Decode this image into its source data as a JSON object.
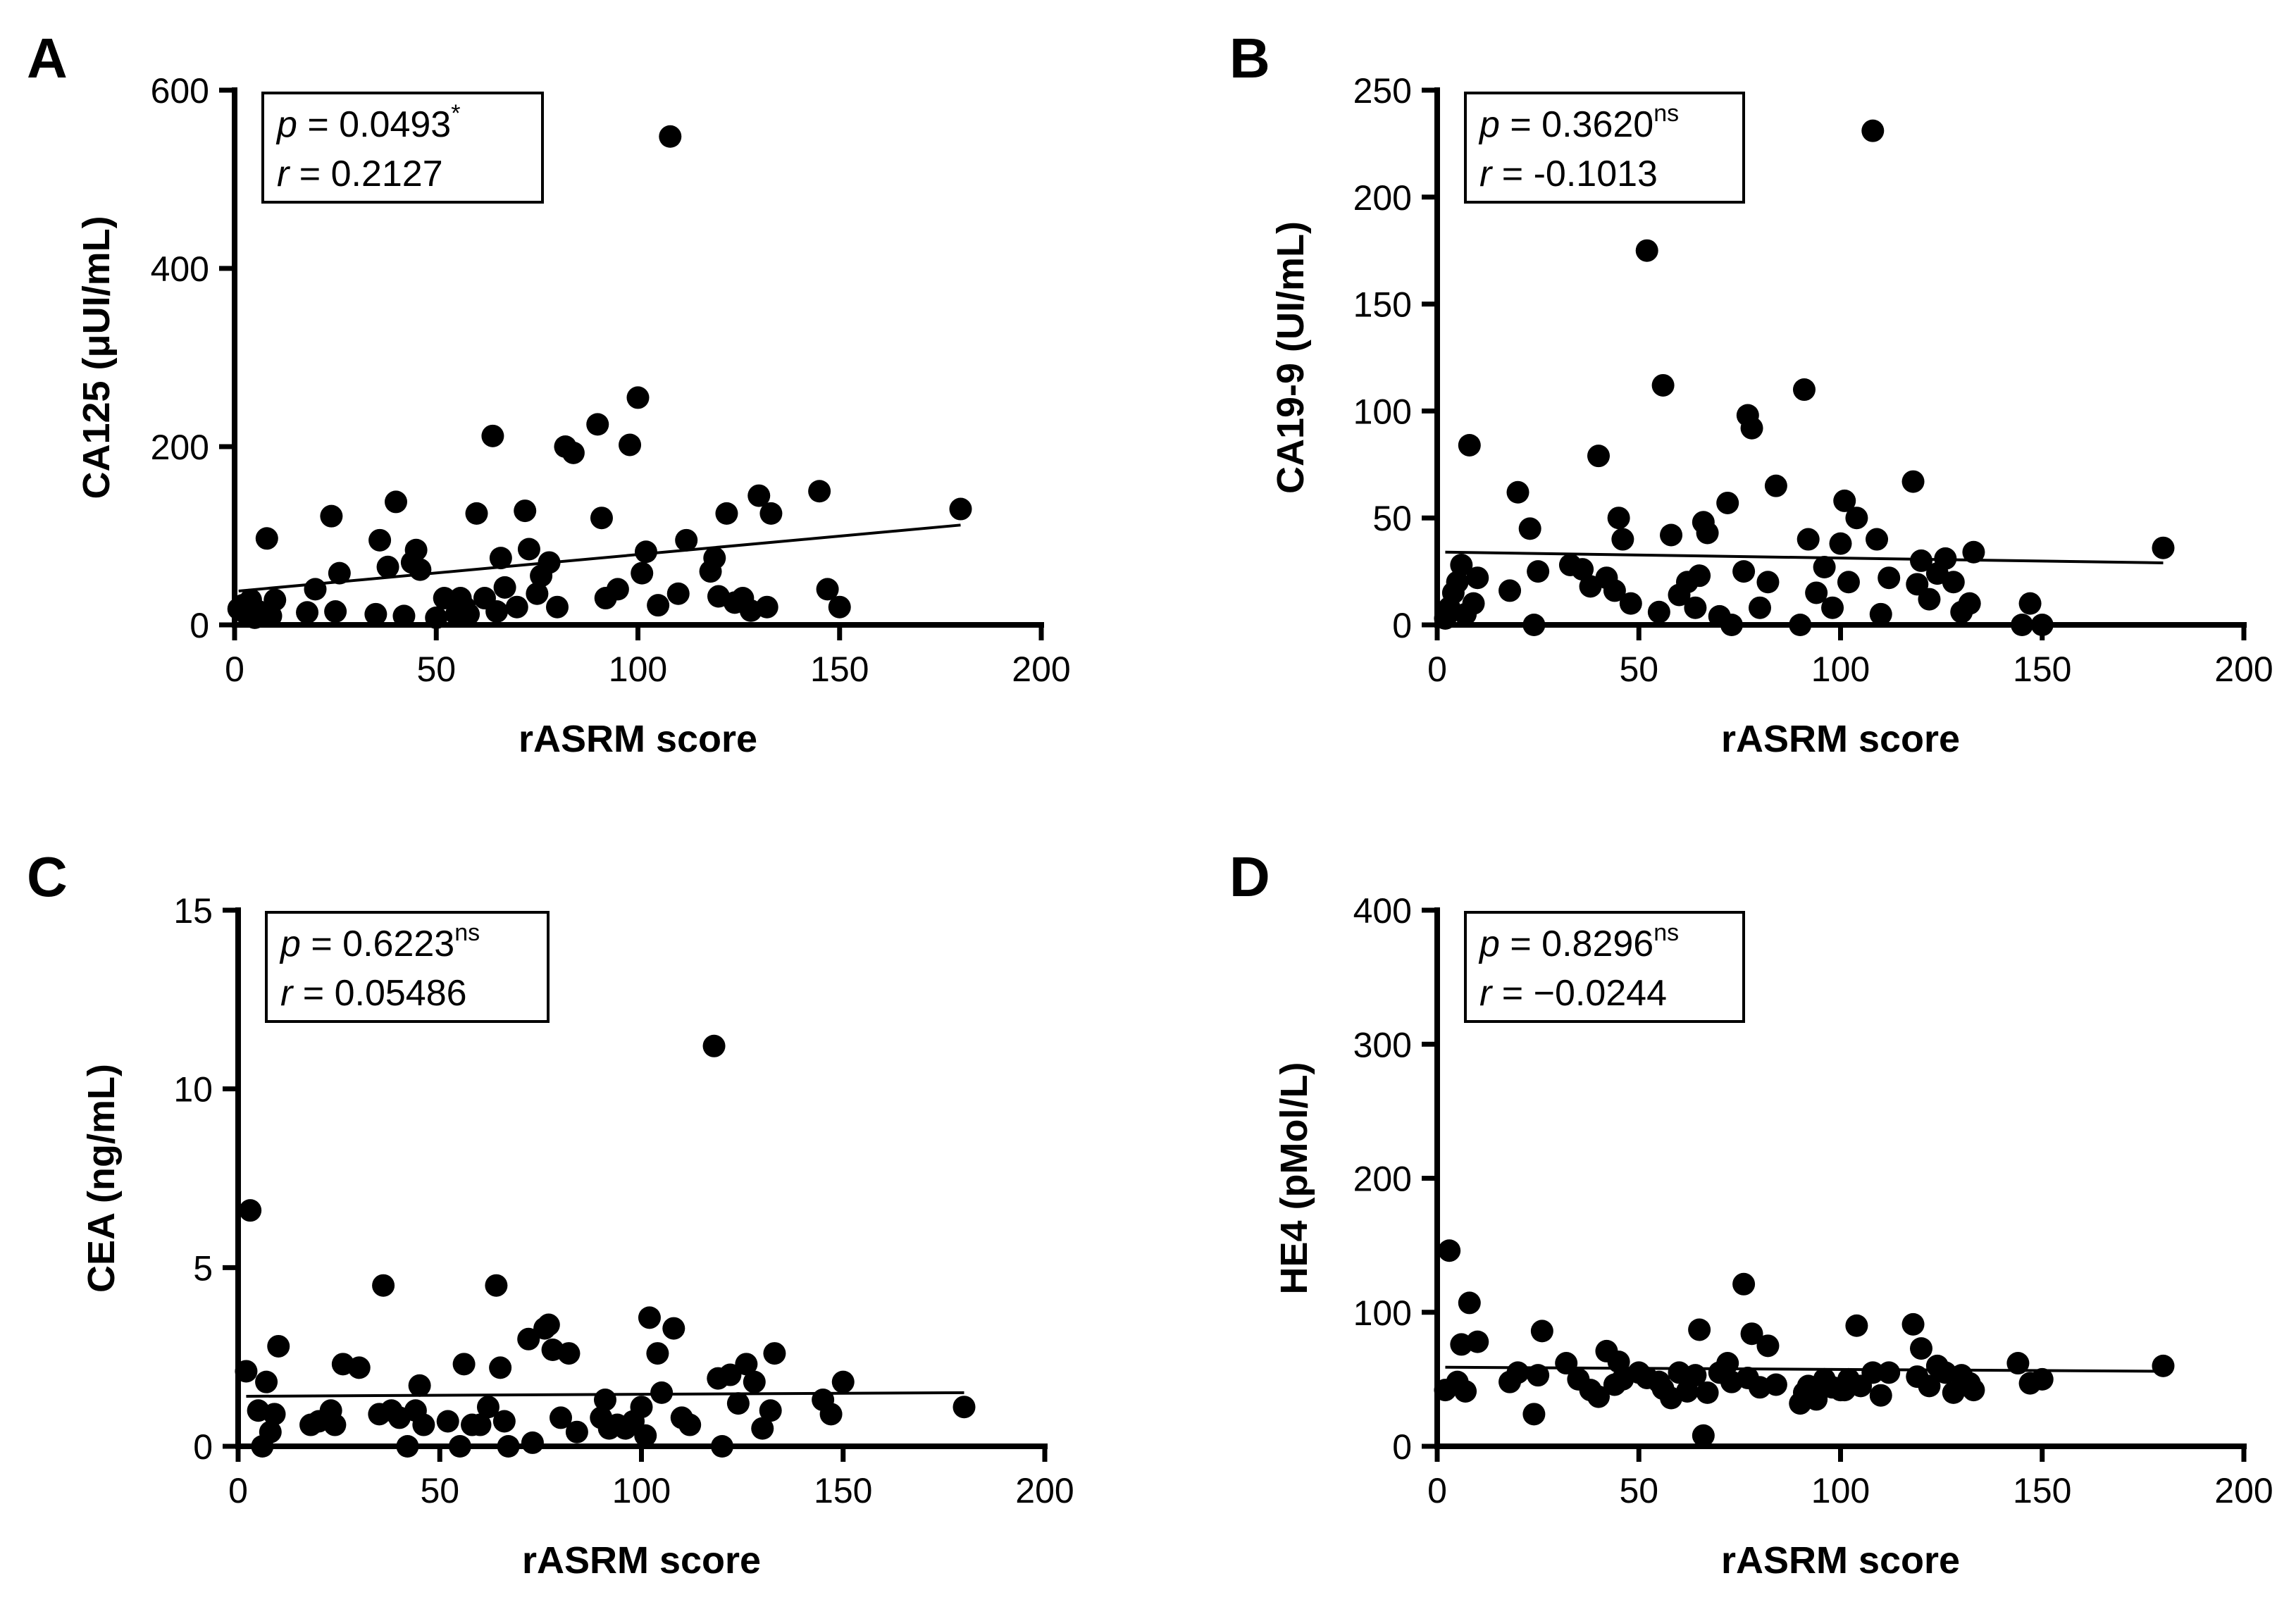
{
  "chart_data": [
    {
      "type": "scatter",
      "panel": "A",
      "title": "",
      "xlabel": "rASRM score",
      "ylabel": "CA125 (μUI/mL)",
      "xlim": [
        0,
        200
      ],
      "ylim": [
        0,
        600
      ],
      "x_ticks": [
        0,
        50,
        100,
        150,
        200
      ],
      "y_ticks": [
        0,
        200,
        400,
        600
      ],
      "x_tick_labels": [
        "0",
        "50",
        "100",
        "150",
        "200"
      ],
      "y_tick_labels": [
        "0",
        "200",
        "400",
        "600"
      ],
      "stats": {
        "p_label": "p",
        "p_value": "0.0493",
        "p_sig": "*",
        "r_label": "r",
        "r_value": "0.2127"
      },
      "fit_line": {
        "x": [
          1,
          180
        ],
        "y": [
          38,
          112
        ]
      },
      "x": [
        1,
        2,
        3,
        4,
        5,
        6,
        8,
        9,
        10,
        18,
        20,
        24,
        25,
        26,
        35,
        36,
        38,
        40,
        42,
        44,
        45,
        46,
        50,
        52,
        55,
        56,
        57,
        58,
        60,
        62,
        64,
        65,
        66,
        67,
        70,
        72,
        73,
        75,
        76,
        78,
        80,
        82,
        84,
        90,
        91,
        92,
        95,
        98,
        100,
        101,
        102,
        105,
        108,
        110,
        112,
        118,
        119,
        120,
        122,
        124,
        126,
        128,
        130,
        132,
        133,
        145,
        147,
        150,
        180
      ],
      "y": [
        18,
        22,
        12,
        28,
        8,
        15,
        97,
        10,
        28,
        14,
        40,
        122,
        15,
        58,
        12,
        95,
        65,
        138,
        10,
        70,
        84,
        62,
        8,
        30,
        12,
        30,
        20,
        12,
        125,
        30,
        212,
        15,
        75,
        42,
        20,
        128,
        85,
        35,
        55,
        70,
        20,
        200,
        193,
        225,
        120,
        30,
        40,
        202,
        255,
        58,
        82,
        22,
        548,
        35,
        95,
        60,
        75,
        32,
        125,
        25,
        30,
        16,
        145,
        20,
        125,
        150,
        40,
        20,
        130
      ]
    },
    {
      "type": "scatter",
      "panel": "B",
      "title": "",
      "xlabel": "rASRM score",
      "ylabel": "CA19-9 (UI/mL)",
      "xlim": [
        0,
        200
      ],
      "ylim": [
        0,
        250
      ],
      "x_ticks": [
        0,
        50,
        100,
        150,
        200
      ],
      "y_ticks": [
        0,
        50,
        100,
        150,
        200,
        250
      ],
      "x_tick_labels": [
        "0",
        "50",
        "100",
        "150",
        "200"
      ],
      "y_tick_labels": [
        "0",
        "50",
        "100",
        "150",
        "200",
        "250"
      ],
      "stats": {
        "p_label": "p",
        "p_value": "0.3620",
        "p_sig": "ns",
        "r_label": "r",
        "r_value": "-0.1013"
      },
      "fit_line": {
        "x": [
          2,
          180
        ],
        "y": [
          34,
          29
        ]
      },
      "x": [
        2,
        3,
        4,
        5,
        6,
        7,
        8,
        9,
        10,
        18,
        20,
        23,
        24,
        25,
        33,
        36,
        38,
        40,
        42,
        44,
        45,
        46,
        48,
        52,
        55,
        56,
        58,
        60,
        62,
        64,
        65,
        66,
        67,
        70,
        72,
        73,
        76,
        77,
        78,
        80,
        82,
        84,
        90,
        91,
        92,
        94,
        96,
        98,
        100,
        101,
        102,
        104,
        108,
        109,
        110,
        112,
        118,
        119,
        120,
        122,
        124,
        126,
        128,
        130,
        132,
        133,
        145,
        147,
        150,
        180
      ],
      "y": [
        3,
        8,
        15,
        20,
        28,
        5,
        84,
        10,
        22,
        16,
        62,
        45,
        0,
        25,
        28,
        26,
        18,
        79,
        22,
        16,
        50,
        40,
        10,
        175,
        6,
        112,
        42,
        14,
        20,
        8,
        23,
        48,
        43,
        4,
        57,
        0,
        25,
        98,
        92,
        8,
        20,
        65,
        0,
        110,
        40,
        15,
        27,
        8,
        38,
        58,
        20,
        50,
        231,
        40,
        5,
        22,
        67,
        19,
        30,
        12,
        24,
        31,
        20,
        6,
        10,
        34,
        0,
        10,
        0,
        36
      ]
    },
    {
      "type": "scatter",
      "panel": "C",
      "title": "",
      "xlabel": "rASRM score",
      "ylabel": "CEA (ng/mL)",
      "xlim": [
        0,
        200
      ],
      "ylim": [
        0,
        15
      ],
      "x_ticks": [
        0,
        50,
        100,
        150,
        200
      ],
      "y_ticks": [
        0,
        5,
        10,
        15
      ],
      "x_tick_labels": [
        "0",
        "50",
        "100",
        "150",
        "200"
      ],
      "y_tick_labels": [
        "0",
        "5",
        "10",
        "15"
      ],
      "stats": {
        "p_label": "p",
        "p_value": "0.6223",
        "p_sig": "ns",
        "r_label": "r",
        "r_value": "0.05486"
      },
      "fit_line": {
        "x": [
          2,
          180
        ],
        "y": [
          1.4,
          1.5
        ]
      },
      "x": [
        2,
        3,
        5,
        6,
        7,
        8,
        9,
        10,
        18,
        20,
        23,
        24,
        26,
        30,
        35,
        36,
        38,
        40,
        42,
        44,
        45,
        46,
        52,
        55,
        56,
        58,
        60,
        62,
        64,
        65,
        66,
        67,
        72,
        73,
        76,
        77,
        78,
        80,
        82,
        84,
        90,
        91,
        92,
        94,
        96,
        98,
        100,
        101,
        102,
        104,
        105,
        108,
        110,
        112,
        118,
        119,
        120,
        122,
        124,
        126,
        128,
        130,
        132,
        133,
        145,
        147,
        150,
        180
      ],
      "y": [
        2.1,
        6.6,
        1.0,
        0.0,
        1.8,
        0.4,
        0.9,
        2.8,
        0.6,
        0.7,
        1.0,
        0.6,
        2.3,
        2.2,
        0.9,
        4.5,
        1.0,
        0.8,
        0.0,
        1.0,
        1.7,
        0.6,
        0.7,
        0.0,
        2.3,
        0.6,
        0.6,
        1.1,
        4.5,
        2.2,
        0.7,
        0.0,
        3.0,
        0.1,
        3.3,
        3.4,
        2.7,
        0.8,
        2.6,
        0.4,
        0.8,
        1.3,
        0.5,
        0.6,
        0.5,
        0.7,
        1.1,
        0.3,
        3.6,
        2.6,
        1.5,
        3.3,
        0.8,
        0.6,
        11.2,
        1.9,
        0.0,
        2.0,
        1.2,
        2.3,
        1.8,
        0.5,
        1.0,
        2.6,
        1.3,
        0.9,
        1.8,
        1.1
      ]
    },
    {
      "type": "scatter",
      "panel": "D",
      "title": "",
      "xlabel": "rASRM score",
      "ylabel": "HE4 (pMol/L)",
      "xlim": [
        0,
        200
      ],
      "ylim": [
        0,
        400
      ],
      "x_ticks": [
        0,
        50,
        100,
        150,
        200
      ],
      "y_ticks": [
        0,
        100,
        200,
        300,
        400
      ],
      "x_tick_labels": [
        "0",
        "50",
        "100",
        "150",
        "200"
      ],
      "y_tick_labels": [
        "0",
        "100",
        "200",
        "300",
        "400"
      ],
      "stats": {
        "p_label": "p",
        "p_value": "0.8296",
        "p_sig": "ns",
        "r_label": "r",
        "r_value": "−0.0244"
      },
      "fit_line": {
        "x": [
          2,
          180
        ],
        "y": [
          59,
          56
        ]
      },
      "x": [
        2,
        3,
        5,
        6,
        7,
        8,
        10,
        18,
        20,
        24,
        25,
        26,
        32,
        35,
        38,
        40,
        42,
        44,
        45,
        46,
        50,
        52,
        55,
        56,
        58,
        60,
        62,
        64,
        65,
        66,
        67,
        70,
        72,
        73,
        76,
        77,
        78,
        80,
        82,
        84,
        90,
        91,
        92,
        94,
        96,
        98,
        100,
        101,
        102,
        104,
        105,
        108,
        110,
        112,
        118,
        119,
        120,
        122,
        124,
        126,
        128,
        130,
        132,
        133,
        144,
        147,
        150,
        180
      ],
      "y": [
        42,
        146,
        48,
        76,
        41,
        107,
        78,
        48,
        55,
        24,
        53,
        86,
        62,
        50,
        42,
        37,
        71,
        46,
        63,
        50,
        55,
        51,
        48,
        43,
        36,
        55,
        41,
        53,
        87,
        8,
        40,
        55,
        62,
        48,
        121,
        51,
        84,
        44,
        75,
        46,
        32,
        40,
        45,
        35,
        50,
        44,
        42,
        42,
        50,
        90,
        45,
        55,
        38,
        55,
        91,
        52,
        73,
        45,
        60,
        55,
        40,
        53,
        47,
        42,
        62,
        47,
        50,
        60
      ]
    }
  ]
}
